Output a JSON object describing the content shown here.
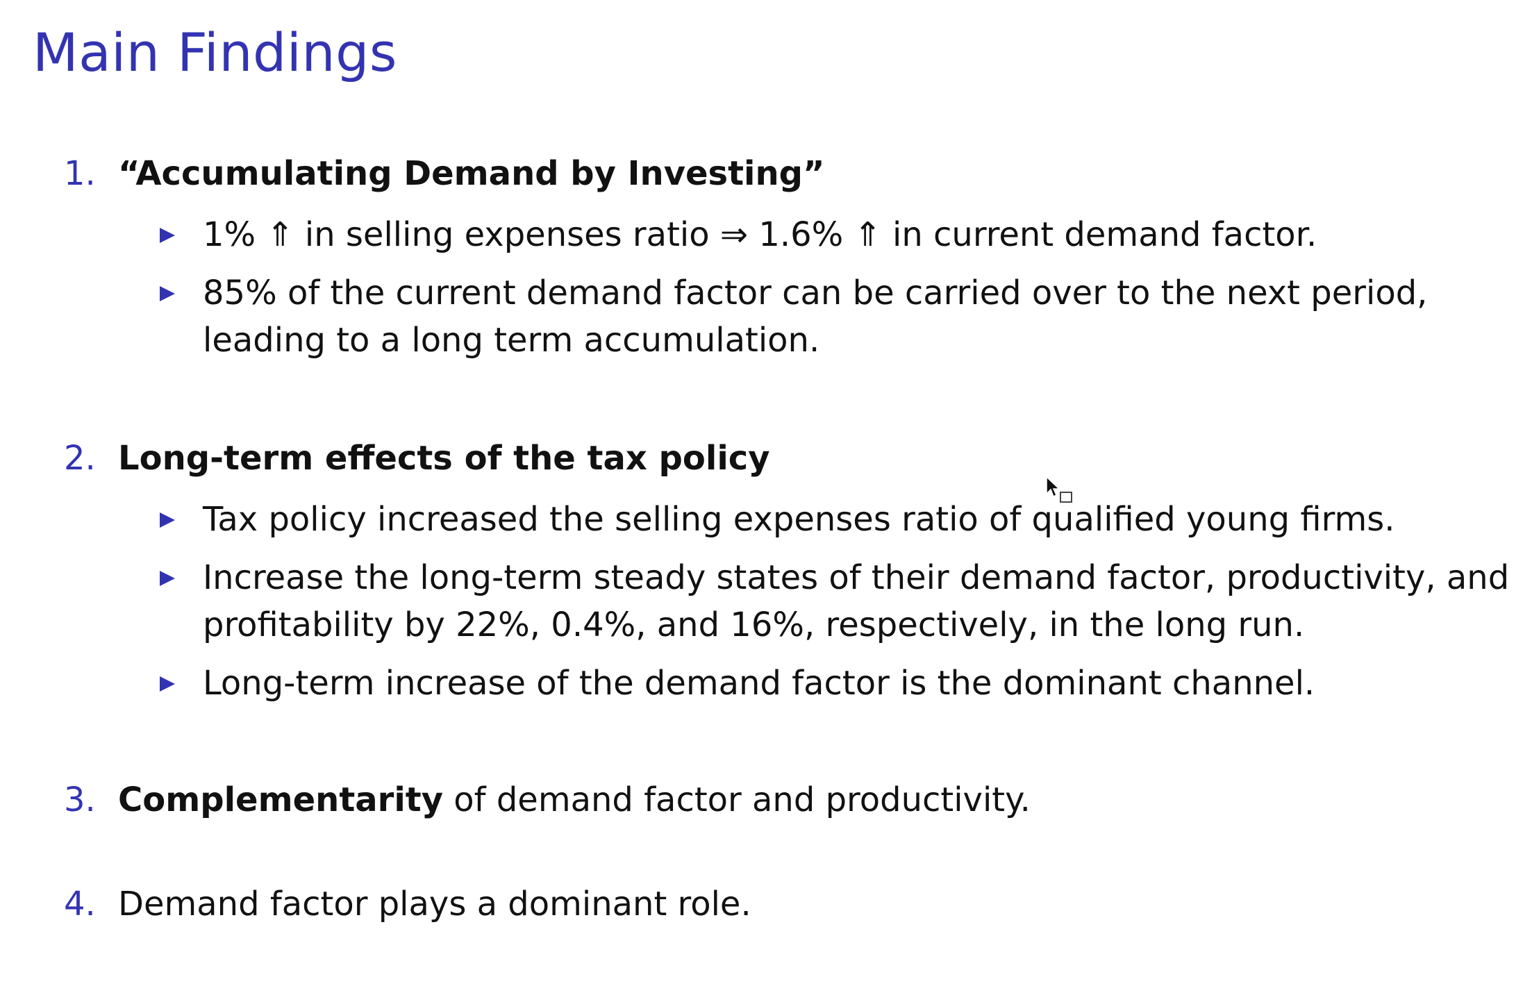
{
  "slide": {
    "title": "Main Findings",
    "items": [
      {
        "number": "1.",
        "heading_bold": "“Accumulating Demand by Investing”",
        "heading_rest": "",
        "bullets": [
          "1% ⇑ in selling expenses ratio ⇒ 1.6% ⇑ in current demand factor.",
          "85% of the current demand factor can be carried over to the next period, leading to a long term accumulation."
        ]
      },
      {
        "number": "2.",
        "heading_bold": "Long-term effects of the tax policy",
        "heading_rest": "",
        "bullets": [
          "Tax policy increased the selling expenses ratio of qualified young firms.",
          "Increase the long-term steady states of their demand factor, productivity, and profitability by 22%, 0.4%, and 16%, respectively, in the long run.",
          "Long-term increase of the demand factor is the dominant channel."
        ]
      },
      {
        "number": "3.",
        "heading_bold": "Complementarity",
        "heading_rest": " of demand factor and productivity.",
        "bullets": []
      },
      {
        "number": "4.",
        "heading_bold": "",
        "heading_rest": "Demand factor plays a dominant role.",
        "bullets": []
      }
    ]
  },
  "colors": {
    "accent": "#3333b2",
    "text": "#111111",
    "background": "#ffffff"
  },
  "icons": {
    "bullet": "triangle-right-icon",
    "cursor": "mouse-pointer-icon"
  }
}
